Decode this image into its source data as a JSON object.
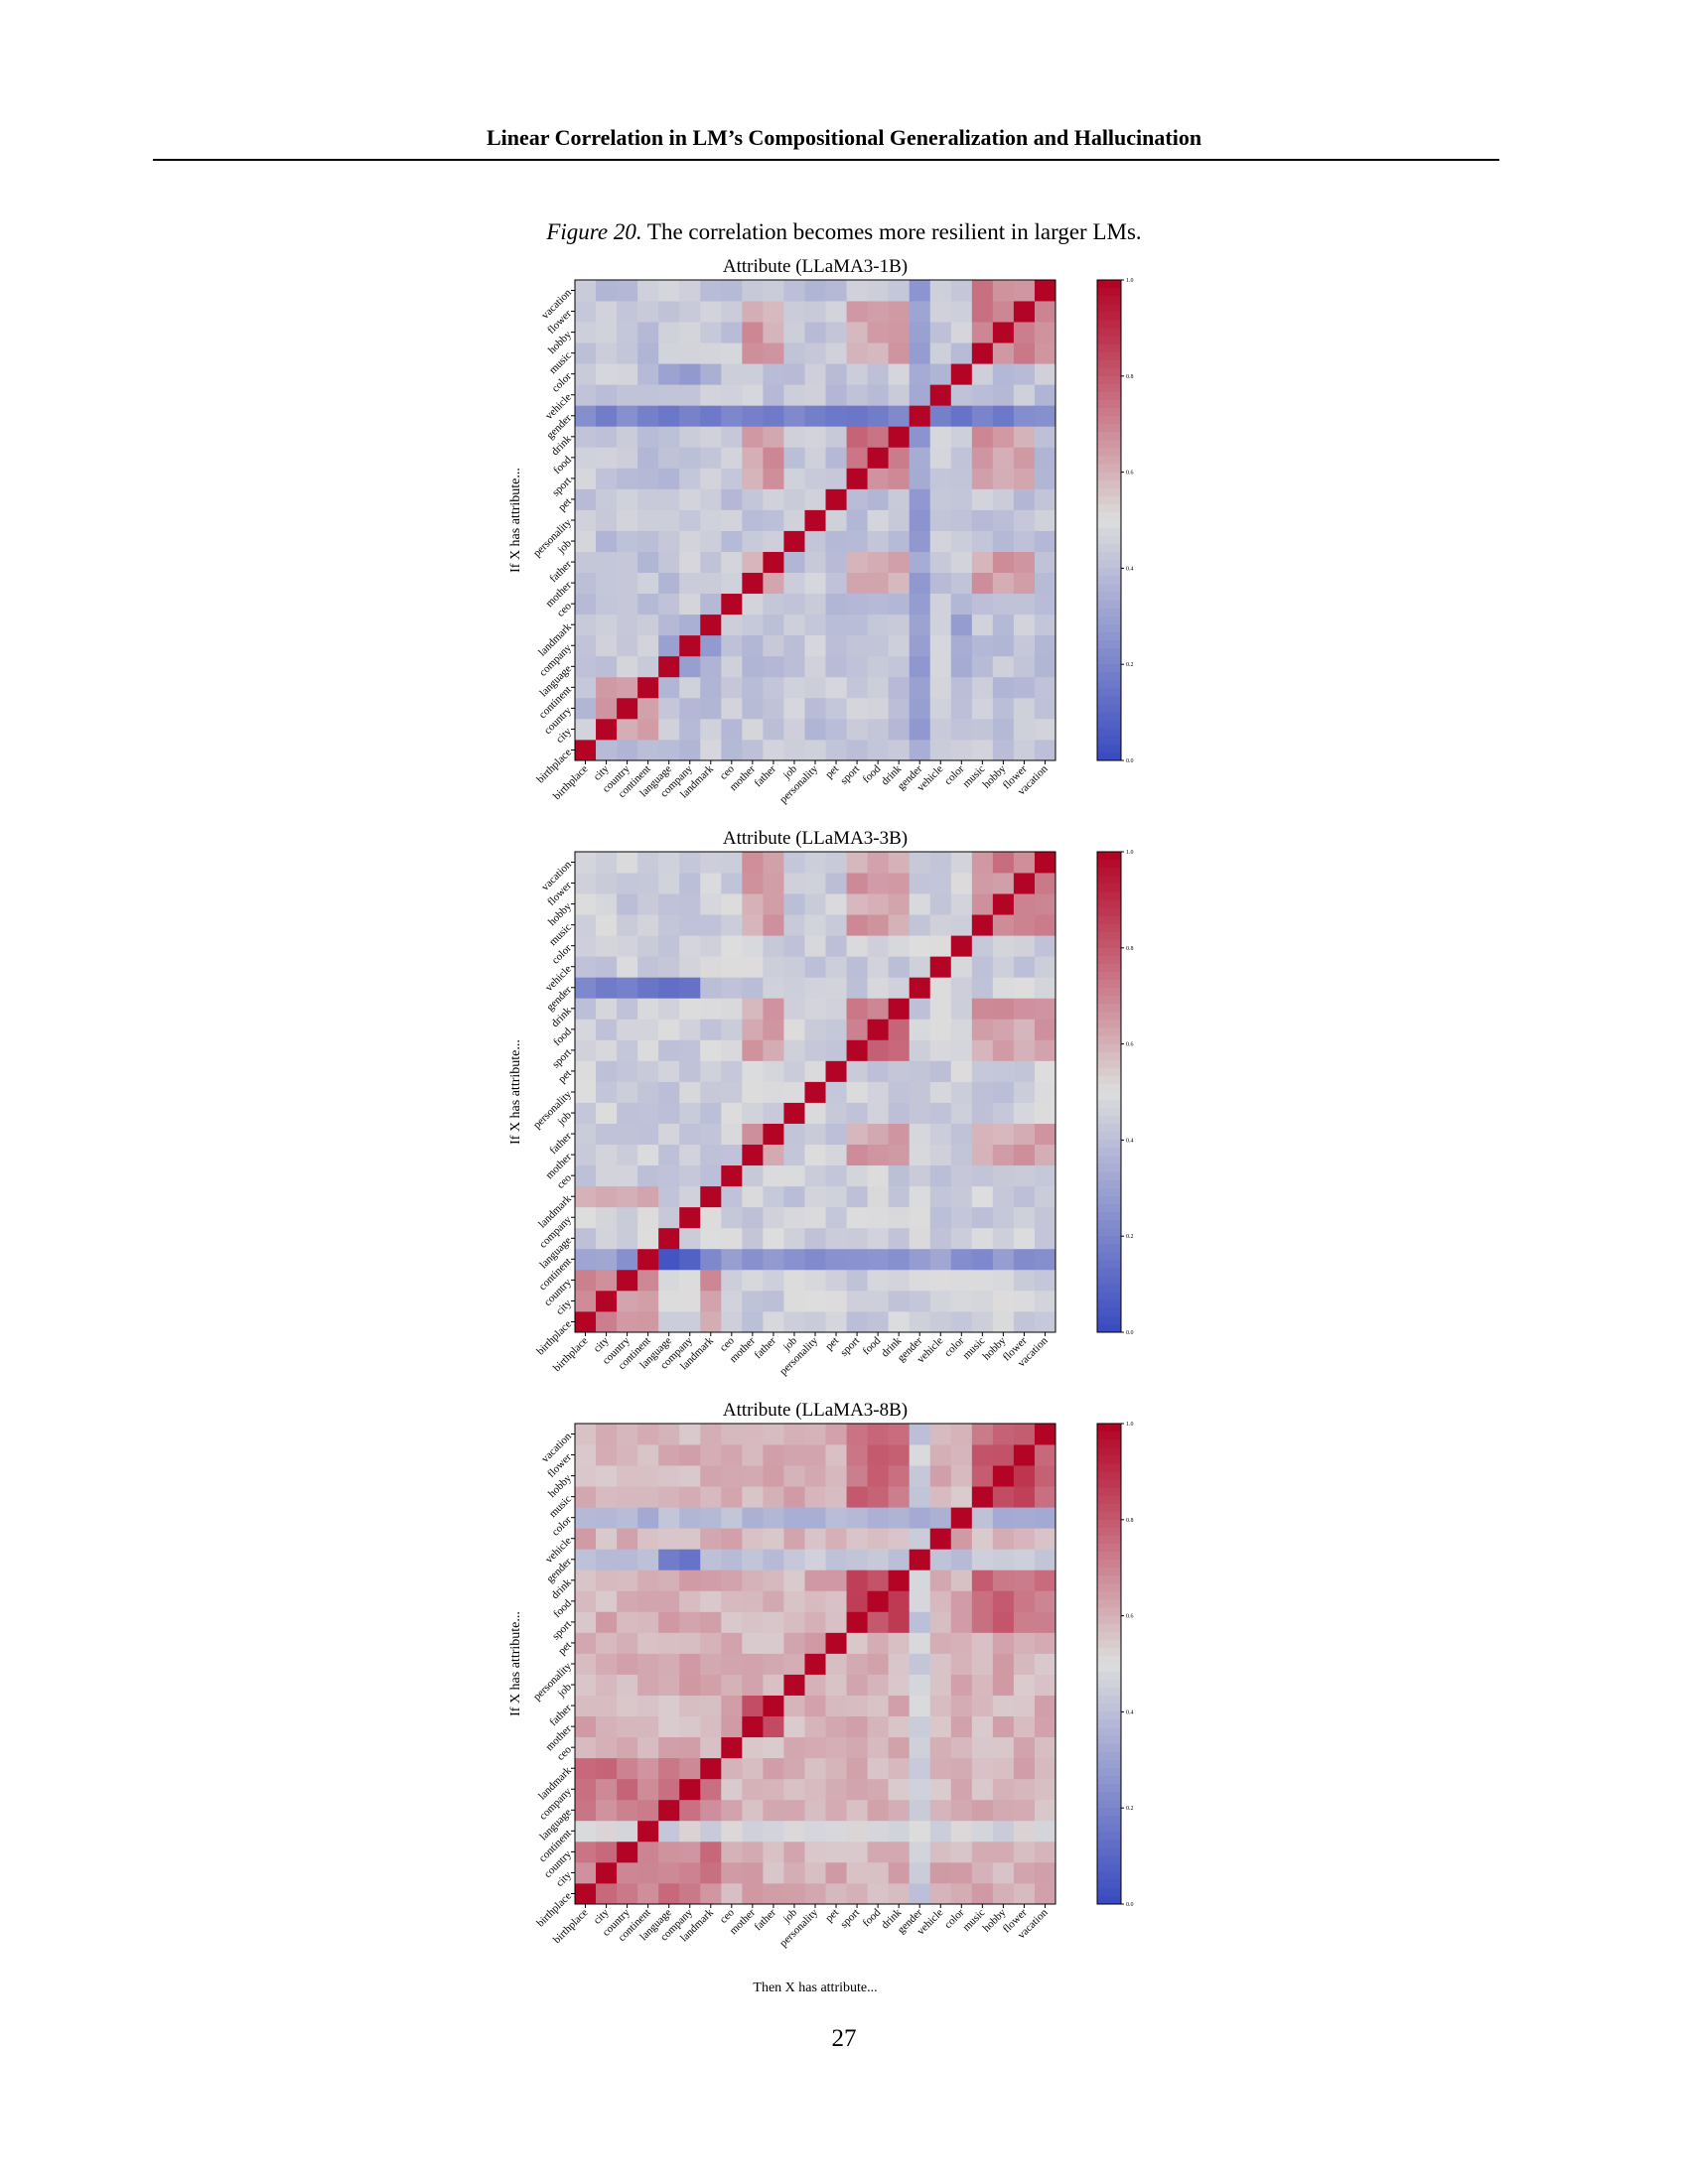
{
  "header": {
    "title": "Linear Correlation in LM’s Compositional Generalization and Hallucination"
  },
  "caption": {
    "figure_label": "Figure 20.",
    "text": "The correlation becomes more resilient in larger LMs."
  },
  "page_number": "27",
  "colors": {
    "low": "#3b4cc0",
    "mid": "#dddddd",
    "high": "#b40426"
  },
  "chart_data": [
    {
      "type": "heatmap",
      "title": "Attribute (LLaMA3-1B)",
      "ylabel": "If X has attribute...",
      "xlabel": "",
      "categories": [
        "birthplace",
        "city",
        "country",
        "continent",
        "language",
        "company",
        "landmark",
        "ceo",
        "mother",
        "father",
        "job",
        "personality",
        "pet",
        "sport",
        "food",
        "drink",
        "gender",
        "vehicle",
        "color",
        "music",
        "hobby",
        "flower",
        "vacation"
      ],
      "colorbar": {
        "ticks": [
          "0.0",
          "0.2",
          "0.4",
          "0.6",
          "0.8",
          "1.0"
        ],
        "range": [
          0,
          1
        ]
      },
      "base": 0.42,
      "blocks": [
        {
          "rows": [
            1,
            2,
            3
          ],
          "cols": [
            1,
            2,
            3
          ],
          "value": 0.66
        },
        {
          "rows": [
            8,
            9
          ],
          "cols": [
            8,
            9
          ],
          "value": 0.88
        },
        {
          "rows": [
            8,
            9,
            13,
            14,
            15,
            19,
            20,
            21
          ],
          "cols": [
            8,
            9,
            13,
            14,
            15,
            19,
            20,
            21
          ],
          "value": 0.64
        },
        {
          "rows": [
            13,
            14,
            15
          ],
          "cols": [
            13,
            14,
            15
          ],
          "value": 0.72
        },
        {
          "rows": [
            19,
            20,
            21,
            22
          ],
          "cols": [
            19,
            20,
            21,
            22
          ],
          "value": 0.7
        },
        {
          "rows": [
            4,
            5,
            6,
            18
          ],
          "cols": [
            4,
            5,
            6,
            18
          ],
          "value": 0.32
        },
        {
          "rows": [
            16
          ],
          "cols": "all",
          "value": 0.18
        },
        {
          "rows": "all",
          "cols": [
            16
          ],
          "value": 0.28
        }
      ]
    },
    {
      "type": "heatmap",
      "title": "Attribute (LLaMA3-3B)",
      "ylabel": "If X has attribute...",
      "xlabel": "",
      "categories": [
        "birthplace",
        "city",
        "country",
        "continent",
        "language",
        "company",
        "landmark",
        "ceo",
        "mother",
        "father",
        "job",
        "personality",
        "pet",
        "sport",
        "food",
        "drink",
        "gender",
        "vehicle",
        "color",
        "music",
        "hobby",
        "flower",
        "vacation"
      ],
      "colorbar": {
        "ticks": [
          "0.0",
          "0.2",
          "0.4",
          "0.6",
          "0.8",
          "1.0"
        ],
        "range": [
          0,
          1
        ]
      },
      "base": 0.45,
      "blocks": [
        {
          "rows": [
            0,
            1,
            2,
            3,
            6
          ],
          "cols": [
            0,
            1,
            2,
            3,
            6
          ],
          "value": 0.66
        },
        {
          "rows": [
            8,
            9
          ],
          "cols": [
            8,
            9
          ],
          "value": 0.8
        },
        {
          "rows": [
            8,
            9,
            13,
            14,
            15,
            19,
            20,
            21,
            22
          ],
          "cols": [
            8,
            9,
            13,
            14,
            15,
            19,
            20,
            21,
            22
          ],
          "value": 0.64
        },
        {
          "rows": [
            13,
            14,
            15
          ],
          "cols": [
            13,
            14,
            15
          ],
          "value": 0.74
        },
        {
          "rows": [
            19,
            20,
            21,
            22
          ],
          "cols": [
            19,
            20,
            21,
            22
          ],
          "value": 0.7
        },
        {
          "rows": [
            3
          ],
          "cols": "all",
          "value": 0.26
        },
        {
          "rows": [
            16
          ],
          "cols": [
            0,
            1,
            2,
            3,
            4,
            5
          ],
          "value": 0.15
        },
        {
          "rows": [
            3
          ],
          "cols": [
            4,
            5
          ],
          "value": 0.08
        }
      ]
    },
    {
      "type": "heatmap",
      "title": "Attribute (LLaMA3-8B)",
      "ylabel": "If X has attribute...",
      "xlabel": "Then X has attribute...",
      "categories": [
        "birthplace",
        "city",
        "country",
        "continent",
        "language",
        "company",
        "landmark",
        "ceo",
        "mother",
        "father",
        "job",
        "personality",
        "pet",
        "sport",
        "food",
        "drink",
        "gender",
        "vehicle",
        "color",
        "music",
        "hobby",
        "flower",
        "vacation"
      ],
      "colorbar": {
        "ticks": [
          "0.0",
          "0.2",
          "0.4",
          "0.6",
          "0.8",
          "1.0"
        ],
        "range": [
          0,
          1
        ]
      },
      "base": 0.6,
      "blocks": [
        {
          "rows": [
            0,
            1,
            2,
            3,
            4,
            5,
            6
          ],
          "cols": [
            0,
            1,
            2,
            3,
            4,
            5,
            6
          ],
          "value": 0.72
        },
        {
          "rows": [
            8,
            9
          ],
          "cols": [
            8,
            9
          ],
          "value": 0.82
        },
        {
          "rows": [
            13,
            14,
            15,
            19,
            20,
            21,
            22
          ],
          "cols": [
            13,
            14,
            15,
            19,
            20,
            21,
            22
          ],
          "value": 0.76
        },
        {
          "rows": [
            13,
            14,
            15
          ],
          "cols": [
            13,
            14,
            15
          ],
          "value": 0.82
        },
        {
          "rows": [
            19,
            20,
            21
          ],
          "cols": [
            19,
            20,
            21
          ],
          "value": 0.84
        },
        {
          "rows": [
            16
          ],
          "cols": "all",
          "value": 0.4
        },
        {
          "rows": "all",
          "cols": [
            16
          ],
          "value": 0.45
        },
        {
          "rows": [
            18
          ],
          "cols": "all",
          "value": 0.38
        },
        {
          "rows": [
            3
          ],
          "cols": "all",
          "value": 0.48
        },
        {
          "rows": [
            16
          ],
          "cols": [
            4,
            5
          ],
          "value": 0.15
        }
      ]
    }
  ]
}
